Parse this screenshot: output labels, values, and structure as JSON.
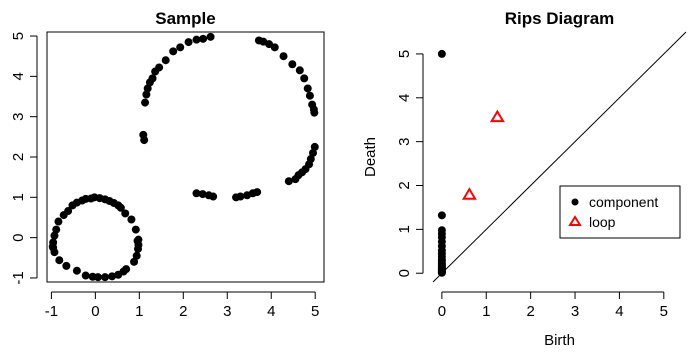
{
  "chart_data": [
    {
      "type": "scatter",
      "title": "Sample",
      "xlabel": "",
      "ylabel": "",
      "xlim": [
        -1.1,
        5.2
      ],
      "ylim": [
        -1.1,
        5.1
      ],
      "xticks": [
        -1,
        0,
        1,
        2,
        3,
        4,
        5
      ],
      "yticks": [
        -1,
        0,
        1,
        2,
        3,
        4,
        5
      ],
      "grid": false,
      "series": [
        {
          "color": "#000000",
          "marker": "filled-circle",
          "x": [
            -0.96,
            -0.96,
            -0.93,
            -0.89,
            -0.84,
            -0.72,
            -0.62,
            -0.52,
            -0.42,
            -0.3,
            -0.22,
            -0.1,
            -0.02,
            0.1,
            0.22,
            0.32,
            0.42,
            0.52,
            0.58,
            0.68,
            0.82,
            0.92,
            0.96,
            0.98,
            0.98,
            0.97,
            0.94,
            0.88,
            0.7,
            0.64,
            0.52,
            0.38,
            0.22,
            0.06,
            -0.06,
            -0.22,
            -0.42,
            -0.66,
            -0.82,
            -0.93,
            -0.97,
            1.09,
            1.11,
            1.13,
            1.16,
            1.19,
            1.24,
            1.3,
            1.36,
            1.45,
            1.6,
            1.77,
            1.93,
            2.12,
            2.3,
            2.45,
            2.62,
            2.3,
            2.44,
            2.58,
            2.68,
            3.2,
            3.3,
            3.45,
            3.58,
            3.68,
            3.72,
            3.82,
            3.95,
            4.08,
            4.28,
            4.48,
            4.65,
            4.75,
            4.83,
            4.88,
            4.93,
            4.97,
            4.98,
            4.99,
            4.95,
            4.9,
            4.86,
            4.78,
            4.7,
            4.62,
            4.55,
            4.4
          ],
          "y": [
            -0.25,
            -0.12,
            0.05,
            0.2,
            0.4,
            0.56,
            0.66,
            0.8,
            0.87,
            0.92,
            0.96,
            0.97,
            1.0,
            0.98,
            0.95,
            0.91,
            0.86,
            0.8,
            0.74,
            0.6,
            0.45,
            0.2,
            -0.08,
            -0.18,
            -0.05,
            -0.28,
            -0.45,
            -0.6,
            -0.78,
            -0.84,
            -0.92,
            -0.96,
            -0.98,
            -0.98,
            -0.97,
            -0.94,
            -0.82,
            -0.7,
            -0.56,
            -0.36,
            -0.22,
            2.55,
            2.42,
            3.35,
            3.55,
            3.7,
            3.85,
            3.95,
            4.12,
            4.22,
            4.4,
            4.62,
            4.72,
            4.85,
            4.91,
            4.93,
            4.98,
            1.1,
            1.08,
            1.05,
            1.02,
            1.0,
            1.02,
            1.05,
            1.1,
            1.13,
            4.89,
            4.86,
            4.8,
            4.72,
            4.5,
            4.3,
            4.15,
            3.95,
            3.7,
            3.52,
            3.3,
            3.18,
            3.1,
            2.25,
            2.1,
            1.95,
            1.82,
            1.7,
            1.62,
            1.55,
            1.45,
            1.4
          ]
        }
      ]
    },
    {
      "type": "scatter",
      "title": "Rips Diagram",
      "xlabel": "Birth",
      "ylabel": "Death",
      "xlim": [
        -0.2,
        5.5
      ],
      "ylim": [
        -0.2,
        5.5
      ],
      "xticks": [
        0,
        1,
        2,
        3,
        4,
        5
      ],
      "yticks": [
        0,
        1,
        2,
        3,
        4,
        5
      ],
      "grid": false,
      "diagonal": true,
      "legend_position": "right",
      "series": [
        {
          "name": "component",
          "color": "#000000",
          "marker": "filled-circle",
          "x": [
            0,
            0,
            0,
            0,
            0,
            0,
            0,
            0,
            0,
            0,
            0,
            0,
            0,
            0,
            0,
            0,
            0,
            0,
            0,
            0,
            0,
            0
          ],
          "y": [
            5.0,
            1.32,
            0.98,
            0.9,
            0.82,
            0.72,
            0.62,
            0.52,
            0.45,
            0.38,
            0.32,
            0.27,
            0.22,
            0.18,
            0.15,
            0.12,
            0.1,
            0.08,
            0.06,
            0.04,
            0.02,
            0.01
          ]
        },
        {
          "name": "loop",
          "color": "#ff0000",
          "marker": "open-triangle",
          "x": [
            0.62,
            1.25
          ],
          "y": [
            1.78,
            3.55
          ]
        }
      ]
    }
  ]
}
